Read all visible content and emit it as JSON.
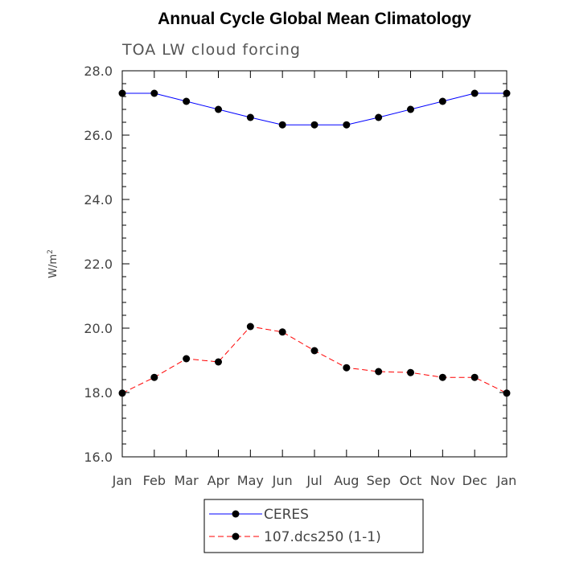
{
  "chart_data": {
    "type": "line",
    "title": "Annual Cycle Global Mean Climatology",
    "subtitle": "TOA LW cloud forcing",
    "xlabel": "",
    "ylabel": "W/m",
    "ylabel_superscript": "2",
    "categories": [
      "Jan",
      "Feb",
      "Mar",
      "Apr",
      "May",
      "Jun",
      "Jul",
      "Aug",
      "Sep",
      "Oct",
      "Nov",
      "Dec",
      "Jan"
    ],
    "ylim": [
      16.0,
      28.0
    ],
    "yticks": [
      "16.0",
      "18.0",
      "20.0",
      "22.0",
      "24.0",
      "26.0",
      "28.0"
    ],
    "series": [
      {
        "name": "CERES",
        "color": "#0000ff",
        "dash": "solid",
        "values": [
          27.3,
          27.3,
          27.05,
          26.8,
          26.55,
          26.32,
          26.32,
          26.32,
          26.55,
          26.8,
          27.05,
          27.3,
          27.3
        ]
      },
      {
        "name": "107.dcs250 (1-1)",
        "color": "#ff0000",
        "dash": "dashed",
        "values": [
          17.98,
          18.47,
          19.05,
          18.95,
          20.05,
          19.88,
          19.3,
          18.77,
          18.65,
          18.62,
          18.47,
          18.47,
          17.98
        ]
      }
    ]
  }
}
